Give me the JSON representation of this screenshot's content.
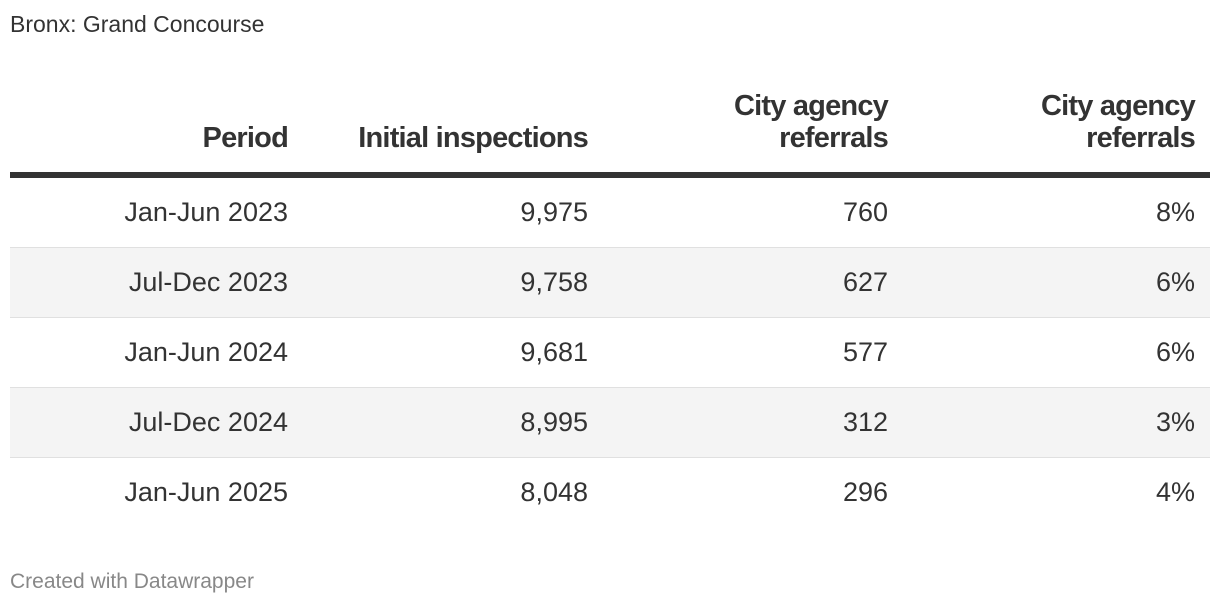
{
  "title": "Bronx: Grand Concourse",
  "footer": "Created with Datawrapper",
  "chart_data": {
    "type": "table",
    "title": "Bronx: Grand Concourse",
    "columns": [
      "Period",
      "Initial inspections",
      "City agency referrals",
      "City agency referrals"
    ],
    "rows": [
      [
        "Jan-Jun 2023",
        "9,975",
        "760",
        "8%"
      ],
      [
        "Jul-Dec 2023",
        "9,758",
        "627",
        "6%"
      ],
      [
        "Jan-Jun 2024",
        "9,681",
        "577",
        "6%"
      ],
      [
        "Jul-Dec 2024",
        "8,995",
        "312",
        "3%"
      ],
      [
        "Jan-Jun 2025",
        "8,048",
        "296",
        "4%"
      ]
    ],
    "values": {
      "period": [
        "Jan-Jun 2023",
        "Jul-Dec 2023",
        "Jan-Jun 2024",
        "Jul-Dec 2024",
        "Jan-Jun 2025"
      ],
      "initial_inspections": [
        9975,
        9758,
        9681,
        8995,
        8048
      ],
      "city_agency_referrals": [
        760,
        627,
        577,
        312,
        296
      ],
      "city_agency_referrals_pct": [
        8,
        6,
        6,
        3,
        4
      ]
    },
    "colors": {
      "text": "#333333",
      "stripe": "#f4f4f4",
      "header_rule": "#333333",
      "footer": "#888888"
    }
  }
}
